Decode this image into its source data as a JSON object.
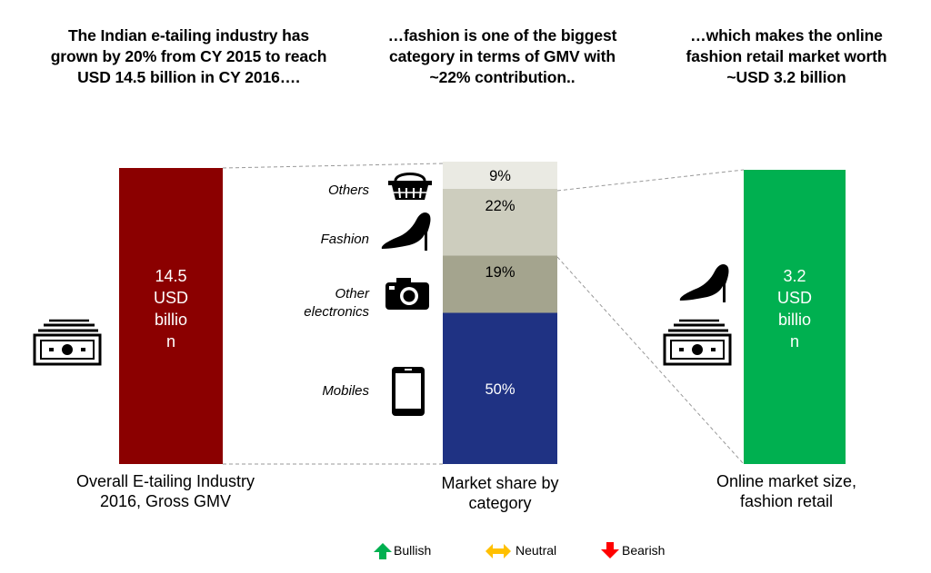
{
  "headings": {
    "left": [
      "The Indian e-tailing industry has",
      "grown by 20% from CY 2015 to reach",
      "USD 14.5 billion in CY 2016…."
    ],
    "middle": [
      "…fashion is one of the biggest",
      "category in terms of GMV with",
      "~22% contribution.."
    ],
    "right": [
      "…which makes the online",
      "fashion retail market worth",
      "~USD 3.2 billion"
    ]
  },
  "chart_data": [
    {
      "type": "bar",
      "categories": [
        "Overall E-tailing Industry 2016, Gross GMV"
      ],
      "values": [
        14.5
      ],
      "unit": "USD billion",
      "bar_label": [
        "14.5",
        "USD",
        "billio",
        "n"
      ],
      "color": "#8B0000"
    },
    {
      "type": "bar",
      "stacked": true,
      "title": "Market share by category",
      "series": [
        {
          "name": "Mobiles",
          "value": 50,
          "label": "50%",
          "color": "#1F3283",
          "label_color": "#ffffff",
          "icon": "mobile-phone-icon"
        },
        {
          "name": "Other electronics",
          "value": 19,
          "label": "19%",
          "color": "#A4A48E",
          "label_color": "#000000",
          "icon": "camera-icon"
        },
        {
          "name": "Fashion",
          "value": 22,
          "label": "22%",
          "color": "#CDCDBE",
          "label_color": "#000000",
          "icon": "high-heel-shoe-icon"
        },
        {
          "name": "Others",
          "value": 9,
          "label": "9%",
          "color": "#EAEAE3",
          "label_color": "#000000",
          "icon": "shopping-basket-icon"
        }
      ],
      "category_labels": {
        "Others": [
          "Others"
        ],
        "Fashion": [
          "Fashion"
        ],
        "Other electronics": [
          "Other",
          "electronics"
        ],
        "Mobiles": [
          "Mobiles"
        ]
      }
    },
    {
      "type": "bar",
      "categories": [
        "Online market size, fashion retail"
      ],
      "values": [
        3.2
      ],
      "unit": "USD billion",
      "bar_label": [
        "3.2",
        "USD",
        "billio",
        "n"
      ],
      "color": "#00B050"
    }
  ],
  "captions": {
    "left": [
      "Overall E-tailing Industry",
      "2016, Gross GMV"
    ],
    "middle": [
      "Market share by",
      "category"
    ],
    "right": [
      "Online market size,",
      "fashion retail"
    ]
  },
  "legend": [
    {
      "label": "Bullish",
      "color": "#00B050",
      "icon": "up-arrow-icon"
    },
    {
      "label": "Neutral",
      "color": "#FFC000",
      "icon": "left-right-arrow-icon"
    },
    {
      "label": "Bearish",
      "color": "#FF0000",
      "icon": "down-arrow-icon"
    }
  ]
}
